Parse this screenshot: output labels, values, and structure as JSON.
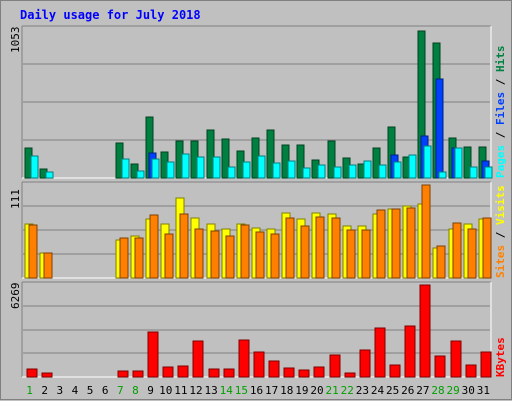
{
  "chart_data": [
    {
      "type": "bar",
      "title": "Daily usage for July 2018",
      "ymax_label": "1053",
      "legend": [
        "Pages",
        "Files",
        "Hits"
      ],
      "categories": [
        "1",
        "2",
        "3",
        "4",
        "5",
        "6",
        "7",
        "8",
        "9",
        "10",
        "11",
        "12",
        "13",
        "14",
        "15",
        "16",
        "17",
        "18",
        "19",
        "20",
        "21",
        "22",
        "23",
        "24",
        "25",
        "26",
        "27",
        "28",
        "29",
        "30",
        "31"
      ],
      "weekend_days": [
        "1",
        "7",
        "8",
        "14",
        "15",
        "21",
        "22",
        "28",
        "29"
      ],
      "ylim": [
        0,
        1053
      ],
      "series": [
        {
          "name": "Hits",
          "values": [
            215,
            65,
            0,
            0,
            0,
            0,
            250,
            100,
            430,
            185,
            260,
            260,
            340,
            275,
            190,
            285,
            340,
            235,
            230,
            130,
            265,
            140,
            100,
            215,
            360,
            150,
            1040,
            955,
            285,
            220,
            220
          ]
        },
        {
          "name": "Files",
          "values": [
            0,
            0,
            0,
            0,
            0,
            0,
            0,
            0,
            180,
            0,
            0,
            0,
            0,
            0,
            0,
            0,
            0,
            0,
            0,
            0,
            0,
            0,
            0,
            0,
            165,
            0,
            295,
            700,
            210,
            0,
            120
          ]
        },
        {
          "name": "Pages",
          "values": [
            155,
            45,
            0,
            0,
            0,
            0,
            135,
            50,
            135,
            115,
            170,
            145,
            150,
            75,
            110,
            155,
            105,
            120,
            70,
            90,
            80,
            90,
            120,
            95,
            115,
            160,
            225,
            40,
            210,
            80,
            80
          ]
        }
      ]
    },
    {
      "type": "bar",
      "ymax_label": "111",
      "legend": [
        "Sites",
        "Visits"
      ],
      "categories": [
        "1",
        "2",
        "3",
        "4",
        "5",
        "6",
        "7",
        "8",
        "9",
        "10",
        "11",
        "12",
        "13",
        "14",
        "15",
        "16",
        "17",
        "18",
        "19",
        "20",
        "21",
        "22",
        "23",
        "24",
        "25",
        "26",
        "27",
        "28",
        "29",
        "30",
        "31"
      ],
      "ylim": [
        0,
        111
      ],
      "series": [
        {
          "name": "Visits",
          "values": [
            64,
            30,
            0,
            0,
            0,
            0,
            45,
            50,
            70,
            64,
            95,
            72,
            65,
            58,
            65,
            60,
            58,
            77,
            70,
            77,
            76,
            62,
            62,
            76,
            82,
            86,
            88,
            36,
            58,
            64,
            70
          ]
        },
        {
          "name": "Sites",
          "values": [
            63,
            30,
            0,
            0,
            0,
            0,
            48,
            48,
            75,
            52,
            76,
            58,
            56,
            50,
            63,
            55,
            52,
            72,
            62,
            73,
            72,
            57,
            57,
            81,
            82,
            83,
            111,
            38,
            66,
            58,
            72
          ]
        }
      ]
    },
    {
      "type": "bar",
      "ymax_label": "6269",
      "legend": [
        "KBytes"
      ],
      "categories": [
        "1",
        "2",
        "3",
        "4",
        "5",
        "6",
        "7",
        "8",
        "9",
        "10",
        "11",
        "12",
        "13",
        "14",
        "15",
        "16",
        "17",
        "18",
        "19",
        "20",
        "21",
        "22",
        "23",
        "24",
        "25",
        "26",
        "27",
        "28",
        "29",
        "30",
        "31"
      ],
      "ylim": [
        0,
        6269
      ],
      "series": [
        {
          "name": "KBytes",
          "values": [
            560,
            280,
            0,
            0,
            0,
            0,
            420,
            420,
            3060,
            700,
            770,
            2440,
            560,
            560,
            2520,
            1680,
            1120,
            630,
            490,
            700,
            1470,
            280,
            1820,
            3340,
            840,
            3480,
            6269,
            1400,
            2450,
            840,
            1680
          ]
        }
      ]
    }
  ],
  "colors": {
    "hits": "#008040",
    "files": "#0040ff",
    "pages": "#00ffff",
    "visits": "#ffff00",
    "sites": "#ff8000",
    "kbytes": "#ff0000",
    "title": "#0000ff",
    "weekend_day": "#00a000",
    "day": "#000000"
  }
}
